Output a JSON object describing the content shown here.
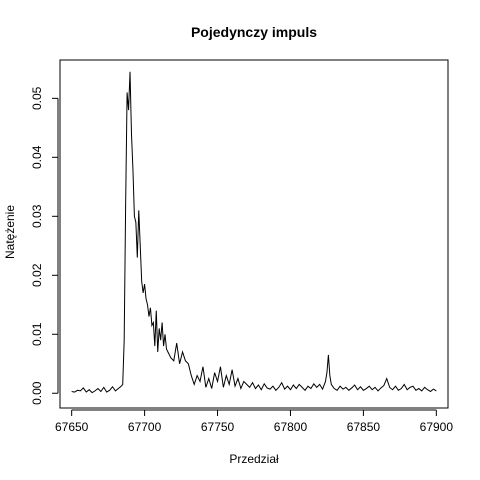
{
  "chart_data": {
    "type": "line",
    "title": "Pojedynczy impuls",
    "xlabel": "Przedział",
    "ylabel": "Natężenie",
    "xlim": [
      67642,
      67908
    ],
    "ylim": [
      -0.0025,
      0.0565
    ],
    "x_ticks": [
      67650,
      67700,
      67750,
      67800,
      67850,
      67900
    ],
    "y_ticks": [
      0.0,
      0.01,
      0.02,
      0.03,
      0.04,
      0.05
    ],
    "y_tick_labels": [
      "0.00",
      "0.01",
      "0.02",
      "0.03",
      "0.04",
      "0.05"
    ],
    "grid": false,
    "legend": "none",
    "series": [
      {
        "x": [
          67650,
          67652,
          67654,
          67656,
          67658,
          67660,
          67662,
          67664,
          67666,
          67668,
          67670,
          67672,
          67674,
          67676,
          67678,
          67680,
          67682,
          67684,
          67685,
          67686,
          67687,
          67688,
          67689,
          67690,
          67691,
          67692,
          67693,
          67694,
          67695,
          67696,
          67697,
          67698,
          67699,
          67700,
          67701,
          67702,
          67703,
          67704,
          67705,
          67706,
          67707,
          67708,
          67709,
          67710,
          67711,
          67712,
          67713,
          67714,
          67715,
          67716,
          67718,
          67720,
          67722,
          67724,
          67726,
          67728,
          67730,
          67732,
          67734,
          67736,
          67738,
          67740,
          67742,
          67744,
          67746,
          67748,
          67750,
          67752,
          67754,
          67756,
          67758,
          67760,
          67762,
          67764,
          67766,
          67768,
          67770,
          67772,
          67774,
          67776,
          67778,
          67780,
          67782,
          67784,
          67786,
          67788,
          67790,
          67792,
          67794,
          67796,
          67798,
          67800,
          67802,
          67804,
          67806,
          67808,
          67810,
          67812,
          67814,
          67816,
          67818,
          67820,
          67822,
          67824,
          67825,
          67826,
          67827,
          67828,
          67830,
          67832,
          67834,
          67836,
          67838,
          67840,
          67842,
          67844,
          67846,
          67848,
          67850,
          67852,
          67854,
          67856,
          67858,
          67860,
          67862,
          67864,
          67866,
          67868,
          67870,
          67872,
          67874,
          67876,
          67878,
          67880,
          67882,
          67884,
          67886,
          67888,
          67890,
          67892,
          67894,
          67896,
          67898,
          67900
        ],
        "y": [
          0.0003,
          0.0002,
          0.0005,
          0.0004,
          0.0009,
          0.0002,
          0.0006,
          0.0001,
          0.0004,
          0.0008,
          0.0003,
          0.001,
          0.0002,
          0.0005,
          0.0011,
          0.0004,
          0.0008,
          0.0012,
          0.0015,
          0.009,
          0.032,
          0.051,
          0.048,
          0.0545,
          0.044,
          0.038,
          0.03,
          0.029,
          0.023,
          0.031,
          0.025,
          0.019,
          0.017,
          0.0185,
          0.016,
          0.015,
          0.013,
          0.0145,
          0.0115,
          0.012,
          0.008,
          0.014,
          0.007,
          0.011,
          0.009,
          0.012,
          0.008,
          0.01,
          0.0075,
          0.007,
          0.006,
          0.0055,
          0.0085,
          0.005,
          0.007,
          0.0055,
          0.005,
          0.003,
          0.0015,
          0.003,
          0.002,
          0.0045,
          0.001,
          0.0025,
          0.0008,
          0.0035,
          0.002,
          0.0045,
          0.001,
          0.003,
          0.0015,
          0.004,
          0.0012,
          0.0025,
          0.0008,
          0.002,
          0.0015,
          0.001,
          0.0018,
          0.0008,
          0.0014,
          0.0006,
          0.0016,
          0.0009,
          0.0007,
          0.0012,
          0.0005,
          0.001,
          0.0018,
          0.0007,
          0.0012,
          0.0006,
          0.0014,
          0.0008,
          0.0015,
          0.001,
          0.0005,
          0.0012,
          0.0008,
          0.0016,
          0.001,
          0.0015,
          0.0007,
          0.002,
          0.0035,
          0.0065,
          0.003,
          0.0015,
          0.0008,
          0.0005,
          0.0012,
          0.0007,
          0.001,
          0.0005,
          0.0009,
          0.0014,
          0.0006,
          0.0011,
          0.0005,
          0.0008,
          0.0012,
          0.0006,
          0.001,
          0.0004,
          0.0009,
          0.0013,
          0.0025,
          0.001,
          0.0006,
          0.0012,
          0.0005,
          0.0008,
          0.0015,
          0.0006,
          0.001,
          0.0012,
          0.0005,
          0.0008,
          0.0004,
          0.001,
          0.0006,
          0.0003,
          0.0007,
          0.0004
        ]
      }
    ]
  }
}
